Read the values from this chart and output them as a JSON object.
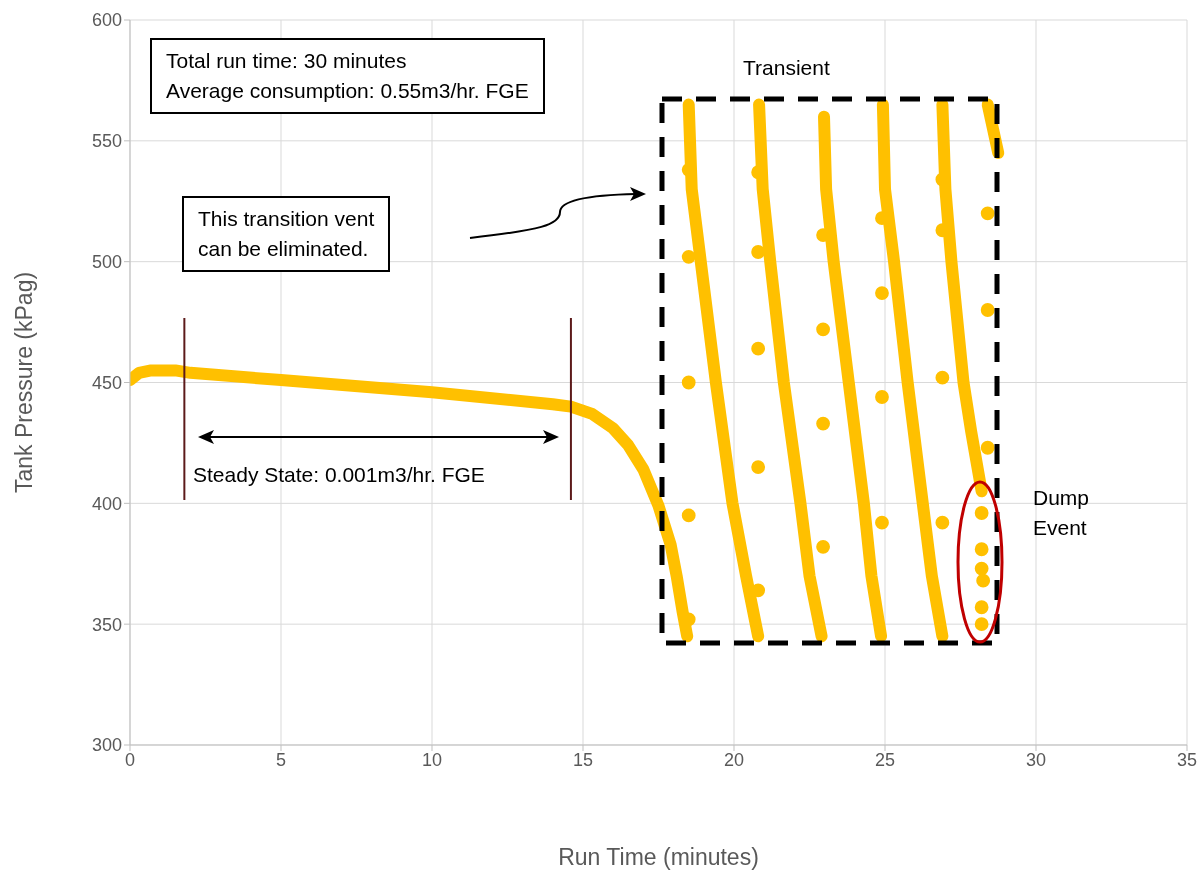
{
  "chart_data": {
    "type": "scatter",
    "xlabel": "Run Time (minutes)",
    "ylabel": "Tank Pressure (kPag)",
    "xlim": [
      0,
      35
    ],
    "xticks": [
      0,
      5,
      10,
      15,
      20,
      25,
      30,
      35
    ],
    "ylim": [
      300,
      600
    ],
    "yticks": [
      300,
      350,
      400,
      450,
      500,
      550,
      600
    ],
    "grid": true,
    "legend": false,
    "series": [
      {
        "type": "line",
        "color": "#ffc000",
        "x": [
          0,
          0.3,
          0.7,
          1.5,
          2,
          5,
          10,
          14,
          14.6,
          15.3,
          16,
          16.5,
          17,
          17.5,
          17.9,
          18.1,
          18.3,
          18.45
        ],
        "values": [
          451,
          454,
          455,
          455,
          454,
          451,
          446,
          441,
          440,
          437,
          431,
          424,
          414,
          399,
          383,
          370,
          355,
          345
        ]
      },
      {
        "type": "line",
        "color": "#ffc000",
        "x": [
          18.5,
          18.6,
          18.9,
          19.4,
          19.95,
          20.4,
          20.8
        ],
        "values": [
          565,
          530,
          500,
          450,
          400,
          370,
          345
        ]
      },
      {
        "type": "line",
        "color": "#ffc000",
        "x": [
          20.83,
          20.95,
          21.2,
          21.65,
          22.2,
          22.5,
          22.9
        ],
        "values": [
          565,
          530,
          500,
          450,
          400,
          370,
          345
        ]
      },
      {
        "type": "line",
        "color": "#ffc000",
        "x": [
          22.98,
          23.05,
          23.3,
          23.8,
          24.3,
          24.55,
          24.87
        ],
        "values": [
          560,
          530,
          500,
          450,
          400,
          370,
          345
        ]
      },
      {
        "type": "line",
        "color": "#ffc000",
        "x": [
          24.93,
          25,
          25.3,
          25.75,
          26.25,
          26.55,
          26.9
        ],
        "values": [
          565,
          530,
          500,
          450,
          400,
          370,
          345
        ]
      },
      {
        "type": "line",
        "color": "#ffc000",
        "x": [
          26.9,
          27,
          27.2,
          27.6,
          27.85,
          28.2
        ],
        "values": [
          565,
          530,
          500,
          450,
          430,
          405
        ]
      },
      {
        "type": "line",
        "color": "#ffc000",
        "x": [
          28.4,
          28.75
        ],
        "values": [
          565,
          545
        ]
      },
      {
        "color": "#ffc000",
        "marker": "circle",
        "x": [
          18.5,
          18.5,
          18.5,
          18.5,
          18.5,
          20.8,
          20.8,
          20.8,
          20.8,
          20.8,
          22.95,
          22.95,
          22.95,
          22.95,
          24.9,
          24.9,
          24.9,
          24.9,
          26.9,
          26.9,
          26.9,
          26.9,
          28.4,
          28.4,
          28.4,
          28.2,
          28.2,
          28.2,
          28.25,
          28.2,
          28.2
        ],
        "values": [
          538,
          502,
          450,
          395,
          352,
          537,
          504,
          464,
          415,
          364,
          511,
          472,
          433,
          382,
          518,
          487,
          444,
          392,
          534,
          513,
          452,
          392,
          520,
          480,
          423,
          396,
          381,
          373,
          368,
          357,
          350
        ]
      }
    ],
    "ref_lines": [
      {
        "axis": "x",
        "value": 1.8,
        "color": "#5c1a1a"
      },
      {
        "axis": "x",
        "value": 14.6,
        "color": "#5c1a1a"
      }
    ],
    "annotations": [
      "Total run time: 30 minutes\nAverage consumption: 0.55m3/hr. FGE",
      "Transient",
      "This transition vent\ncan be eliminated.",
      "Steady State: 0.001m3/hr. FGE",
      "Dump\nEvent"
    ]
  }
}
